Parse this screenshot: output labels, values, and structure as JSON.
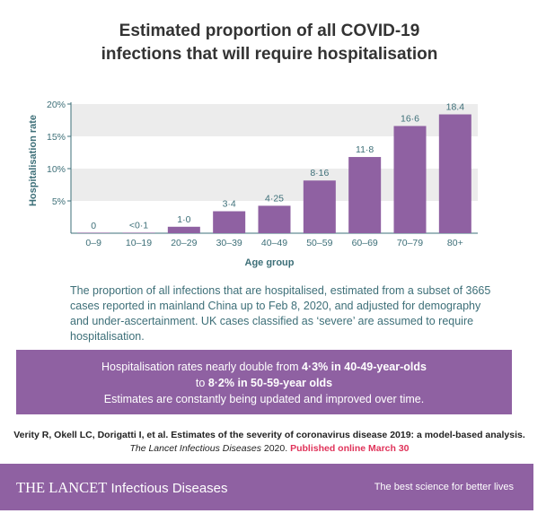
{
  "title_line1": "Estimated proportion of all COVID-19",
  "title_line2": "infections that will require hospitalisation",
  "chart_data": {
    "type": "bar",
    "xlabel": "Age group",
    "ylabel": "Hospitalisation rate",
    "ylim": [
      0,
      20
    ],
    "yticks": [
      "20%",
      "15%",
      "10%",
      "5%"
    ],
    "categories": [
      "0–9",
      "10–19",
      "20–29",
      "30–39",
      "40–49",
      "50–59",
      "60–69",
      "70–79",
      "80+"
    ],
    "values": [
      0,
      0.04,
      1.0,
      3.4,
      4.25,
      8.16,
      11.8,
      16.6,
      18.4
    ],
    "value_labels": [
      "0",
      "<0·1",
      "1·0",
      "3·4",
      "4·25",
      "8·16",
      "11·8",
      "16·6",
      "18.4"
    ],
    "bar_color": "#8f61a2",
    "band_color": "#ececec",
    "axis_text_color": "#3d6f78"
  },
  "caption": "The proportion of all infections that are hospitalised, estimated from a subset of 3665 cases reported in mainland China up to Feb 8, 2020, and adjusted for demography and under-ascertainment. UK cases classified as ‘severe’ are assumed to require hospitalisation.",
  "callout": {
    "l1_prefix": "Hospitalisation rates nearly double from ",
    "l1_bold": "4·3% in 40-49-year-olds",
    "l2_prefix": "to ",
    "l2_bold": "8·2% in 50-59-year olds",
    "l3": "Estimates are constantly being updated and improved over time."
  },
  "reference": {
    "line1": "Verity R, Okell LC, Dorigatti I, et al. Estimates of the severity of coronavirus disease 2019: a model-based analysis.",
    "journal": "The Lancet Infectious Diseases",
    "year": " 2020. ",
    "published": "Published online March 30"
  },
  "footer": {
    "brand": "THE LANCET",
    "brand_sub": " Infectious Diseases",
    "tagline": "The best science for better lives"
  },
  "colors": {
    "accent": "#8f61a2",
    "teal": "#3d6f78",
    "highlight": "#e0335a"
  }
}
